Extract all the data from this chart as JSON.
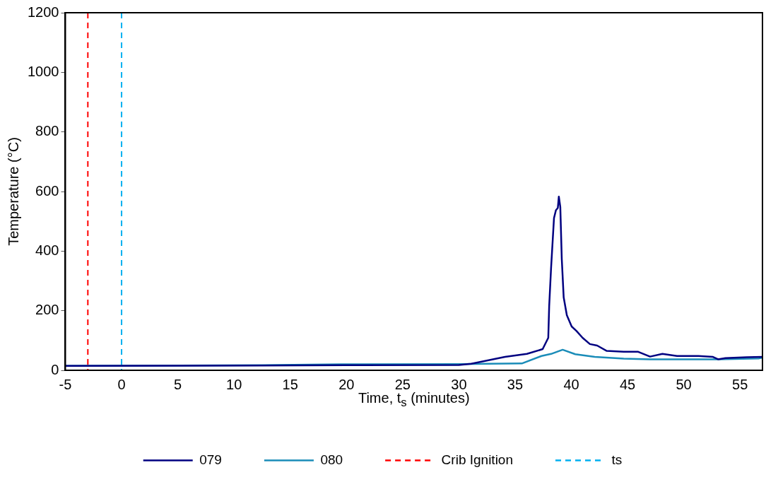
{
  "chart_data": {
    "type": "line",
    "xlabel": "Time, t$_{s}$ (minutes)",
    "ylabel": "Temperature (°C)",
    "xlim": [
      -5,
      57
    ],
    "xticks": [
      -5,
      0,
      5,
      10,
      15,
      20,
      25,
      30,
      35,
      40,
      45,
      50,
      55
    ],
    "ylim": [
      0,
      1200
    ],
    "yticks": [
      0,
      200,
      400,
      600,
      800,
      1000,
      1200
    ],
    "grid": false,
    "legend": "bottom",
    "marker": "none",
    "line_style": "solid",
    "series": [
      {
        "name": "079",
        "color": "#000080",
        "x": [
          -5,
          12.5,
          20,
          30,
          31.1,
          34.1,
          36.05,
          37.45,
          37.95,
          38.03,
          38.2,
          38.46,
          38.63,
          38.8,
          38.89,
          39.02,
          39.15,
          39.32,
          39.6,
          40.03,
          40.46,
          41.0,
          41.65,
          42.3,
          43.15,
          44.66,
          45.95,
          47.0,
          48.1,
          49.4,
          51.3,
          52.6,
          53.05,
          53.7,
          55.6,
          57
        ],
        "values": [
          15,
          16,
          17,
          18,
          22,
          45,
          55,
          71,
          109,
          215,
          344,
          511,
          537,
          545,
          583,
          548,
          374,
          245,
          185,
          147,
          132,
          109,
          88,
          83,
          65,
          62,
          62,
          46,
          55,
          48,
          48,
          45,
          37,
          41,
          44,
          45
        ]
      },
      {
        "name": "080",
        "color": "#1a8cb8",
        "x": [
          -5,
          12.5,
          19.5,
          30,
          32.6,
          35.6,
          37.35,
          38.2,
          39.23,
          40.35,
          42.08,
          44.66,
          47.0,
          53.05,
          56.7,
          57
        ],
        "values": [
          15,
          17,
          20,
          21,
          22,
          23,
          48,
          55,
          69,
          54,
          45,
          39,
          37,
          37,
          40,
          42
        ]
      }
    ],
    "ref_lines": [
      {
        "axis": "x",
        "value": -3,
        "label": "Crib Ignition",
        "color": "#ff0000",
        "line_style": "dashed"
      },
      {
        "axis": "x",
        "value": 0,
        "label": "ts",
        "color": "#00b0f0",
        "line_style": "dashed"
      }
    ]
  }
}
